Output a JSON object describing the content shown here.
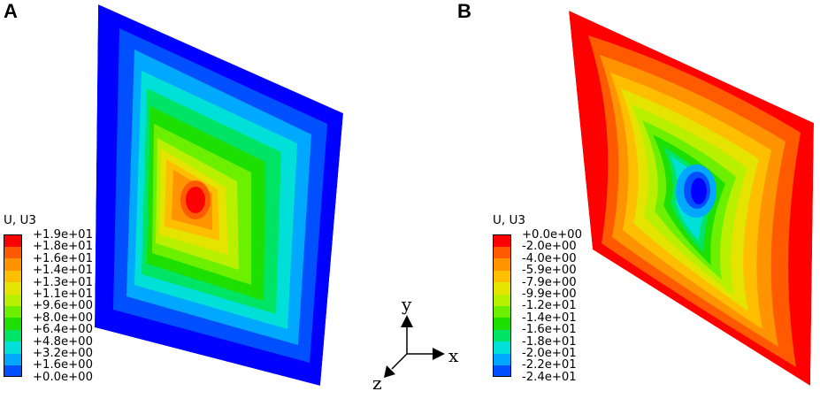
{
  "panels": [
    {
      "label": "A",
      "legend_title": "U, U3",
      "legend_values": [
        "+1.9e+01",
        "+1.8e+01",
        "+1.6e+01",
        "+1.4e+01",
        "+1.3e+01",
        "+1.1e+01",
        "+9.6e+00",
        "+8.0e+00",
        "+6.4e+00",
        "+4.8e+00",
        "+3.2e+00",
        "+1.6e+00",
        "+0.0e+00"
      ],
      "legend_colors": [
        "#ff0000",
        "#ff5a00",
        "#ff9300",
        "#ffbf00",
        "#e4e400",
        "#b8f000",
        "#6df000",
        "#1ee000",
        "#00e466",
        "#00e0d8",
        "#00a8ff",
        "#0050ff",
        "#0000ff"
      ]
    },
    {
      "label": "B",
      "legend_title": "U, U3",
      "legend_values": [
        "+0.0e+00",
        "-2.0e+00",
        "-4.0e+00",
        "-5.9e+00",
        "-7.9e+00",
        "-9.9e+00",
        "-1.2e+01",
        "-1.4e+01",
        "-1.6e+01",
        "-1.8e+01",
        "-2.0e+01",
        "-2.2e+01",
        "-2.4e+01"
      ],
      "legend_colors": [
        "#ff0000",
        "#ff5a00",
        "#ff9300",
        "#ffbf00",
        "#e4e400",
        "#b8f000",
        "#6df000",
        "#1ee000",
        "#00e466",
        "#00e0d8",
        "#00a8ff",
        "#0050ff",
        "#0000ff"
      ]
    }
  ],
  "triad": {
    "y": "y",
    "x": "x",
    "z": "z"
  },
  "colors": {
    "axis": "#000000"
  }
}
